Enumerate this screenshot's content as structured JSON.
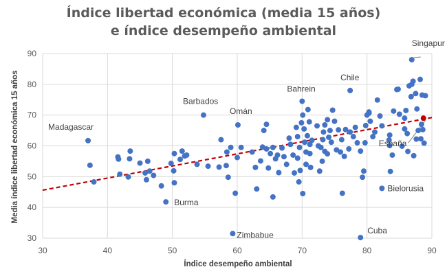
{
  "chart_data": {
    "type": "scatter",
    "title_line1": "Índice libertad económica (media 15 años)",
    "title_line2": "e índice desempeño ambiental",
    "xlabel": "Índice desempeño ambiental",
    "ylabel": "Media índice libertad económica 15 años",
    "xlim": [
      30,
      90
    ],
    "ylim": [
      30,
      90
    ],
    "xticks": [
      30,
      40,
      50,
      60,
      70,
      80,
      90
    ],
    "yticks": [
      30,
      40,
      50,
      60,
      70,
      80,
      90
    ],
    "grid": true,
    "point_color": "#4472c4",
    "trend_color": "#c00000",
    "trendline": {
      "x": [
        30,
        90
      ],
      "y": [
        45.6,
        69.2
      ]
    },
    "labeled_points": [
      {
        "label": "Singapur",
        "x": 86.9,
        "y": 88
      },
      {
        "label": "Chile",
        "x": 77.4,
        "y": 78
      },
      {
        "label": "Bahrein",
        "x": 70,
        "y": 74.5
      },
      {
        "label": "Barbados",
        "x": 54.8,
        "y": 70
      },
      {
        "label": "Omán",
        "x": 60.1,
        "y": 66.8
      },
      {
        "label": "Madagascar",
        "x": 37,
        "y": 61.7
      },
      {
        "label": "España",
        "x": 88.7,
        "y": 69
      },
      {
        "label": "Bielorusia",
        "x": 82.3,
        "y": 46.2
      },
      {
        "label": "Burma",
        "x": 49,
        "y": 41.8
      },
      {
        "label": "Zimbabue",
        "x": 59.3,
        "y": 31.5
      },
      {
        "label": "Cuba",
        "x": 79,
        "y": 30.2
      }
    ],
    "points": [
      [
        37.3,
        53.7
      ],
      [
        37.9,
        48.3
      ],
      [
        41.6,
        56.4
      ],
      [
        41.9,
        50.8
      ],
      [
        41.7,
        55.7
      ],
      [
        43.2,
        49.9
      ],
      [
        43.5,
        58.3
      ],
      [
        43.4,
        55.8
      ],
      [
        45.0,
        54.4
      ],
      [
        45.8,
        51.2
      ],
      [
        46.0,
        49.0
      ],
      [
        46.5,
        51.8
      ],
      [
        47.1,
        50.4
      ],
      [
        46.2,
        55.0
      ],
      [
        48.3,
        47.0
      ],
      [
        49.8,
        54.3
      ],
      [
        50.3,
        57.5
      ],
      [
        50.2,
        51.9
      ],
      [
        51.2,
        55.6
      ],
      [
        51.9,
        56.7
      ],
      [
        51.5,
        58.3
      ],
      [
        52.2,
        57.0
      ],
      [
        50.3,
        48.0
      ],
      [
        53.8,
        54.0
      ],
      [
        55.5,
        53.4
      ],
      [
        57.2,
        53.1
      ],
      [
        57.5,
        62.0
      ],
      [
        58.3,
        53.6
      ],
      [
        58.4,
        58.0
      ],
      [
        58.6,
        49.8
      ],
      [
        59.0,
        59.5
      ],
      [
        59.7,
        44.6
      ],
      [
        60.0,
        56.2
      ],
      [
        60.6,
        59.5
      ],
      [
        62.3,
        58.0
      ],
      [
        62.8,
        53.0
      ],
      [
        63.0,
        46.0
      ],
      [
        63.6,
        55.1
      ],
      [
        63.9,
        59.6
      ],
      [
        64.1,
        65.0
      ],
      [
        64.5,
        59.0
      ],
      [
        64.8,
        52.8
      ],
      [
        64.5,
        67.0
      ],
      [
        65.1,
        57.5
      ],
      [
        65.5,
        59.5
      ],
      [
        65.9,
        55.8
      ],
      [
        65.5,
        43.4
      ],
      [
        66.2,
        57.0
      ],
      [
        66.4,
        51.3
      ],
      [
        66.9,
        59.3
      ],
      [
        67.2,
        56.5
      ],
      [
        67.6,
        54.0
      ],
      [
        68.2,
        60.5
      ],
      [
        68.0,
        62.5
      ],
      [
        68.6,
        57.0
      ],
      [
        68.8,
        51.2
      ],
      [
        69.1,
        66.0
      ],
      [
        69.3,
        63.0
      ],
      [
        69.3,
        56.0
      ],
      [
        69.6,
        59.5
      ],
      [
        69.5,
        48.3
      ],
      [
        69.7,
        52.0
      ],
      [
        69.9,
        67.5
      ],
      [
        70.1,
        70.0
      ],
      [
        70.1,
        44.5
      ],
      [
        70.4,
        61.2
      ],
      [
        70.3,
        65.5
      ],
      [
        70.6,
        58.0
      ],
      [
        70.6,
        54.0
      ],
      [
        70.9,
        71.8
      ],
      [
        70.8,
        63.3
      ],
      [
        71.2,
        60.5
      ],
      [
        71.3,
        53.0
      ],
      [
        71.5,
        61.8
      ],
      [
        71.2,
        57.5
      ],
      [
        71.1,
        67.8
      ],
      [
        72.3,
        66.5
      ],
      [
        72.5,
        60.0
      ],
      [
        72.7,
        51.8
      ],
      [
        72.9,
        59.5
      ],
      [
        73.1,
        55.0
      ],
      [
        73.2,
        62.0
      ],
      [
        73.3,
        64.5
      ],
      [
        73.5,
        66.8
      ],
      [
        73.5,
        58.2
      ],
      [
        73.9,
        68.5
      ],
      [
        73.9,
        57.4
      ],
      [
        74.1,
        62.8
      ],
      [
        74.3,
        65.0
      ],
      [
        74.5,
        61.2
      ],
      [
        74.7,
        71.6
      ],
      [
        75.0,
        68.0
      ],
      [
        75.3,
        58.7
      ],
      [
        75.6,
        65.2
      ],
      [
        75.9,
        58.0
      ],
      [
        76.1,
        62.0
      ],
      [
        76.2,
        44.6
      ],
      [
        76.5,
        56.6
      ],
      [
        76.7,
        65.3
      ],
      [
        77.2,
        59.0
      ],
      [
        77.4,
        64.5
      ],
      [
        77.9,
        63.0
      ],
      [
        78.2,
        66.0
      ],
      [
        78.5,
        61.0
      ],
      [
        79.0,
        58.3
      ],
      [
        79.3,
        49.8
      ],
      [
        79.5,
        51.8
      ],
      [
        79.7,
        61.0
      ],
      [
        79.8,
        66.6
      ],
      [
        80.0,
        70.0
      ],
      [
        80.3,
        70.6
      ],
      [
        80.5,
        68.0
      ],
      [
        80.3,
        71.0
      ],
      [
        80.9,
        63.0
      ],
      [
        81.2,
        64.5
      ],
      [
        81.6,
        74.9
      ],
      [
        82.0,
        69.7
      ],
      [
        82.3,
        66.5
      ],
      [
        83.4,
        61.9
      ],
      [
        83.5,
        60.1
      ],
      [
        83.6,
        51.7
      ],
      [
        83.5,
        63.5
      ],
      [
        83.9,
        57.0
      ],
      [
        84.1,
        71.3
      ],
      [
        84.6,
        78.3
      ],
      [
        84.8,
        78.4
      ],
      [
        85.0,
        70.3
      ],
      [
        85.4,
        59.9
      ],
      [
        85.8,
        65.5
      ],
      [
        85.8,
        69.0
      ],
      [
        86.0,
        71.5
      ],
      [
        86.2,
        64.0
      ],
      [
        86.3,
        58.2
      ],
      [
        86.5,
        79.5
      ],
      [
        86.8,
        76.0
      ],
      [
        86.9,
        80.0
      ],
      [
        87.1,
        81.0
      ],
      [
        87.2,
        56.8
      ],
      [
        87.5,
        77.0
      ],
      [
        87.6,
        62.2
      ],
      [
        87.7,
        72.0
      ],
      [
        87.9,
        65.0
      ],
      [
        88.2,
        81.6
      ],
      [
        88.3,
        62.3
      ],
      [
        88.5,
        76.5
      ],
      [
        88.4,
        67.0
      ],
      [
        88.6,
        65.3
      ],
      [
        88.8,
        60.9
      ],
      [
        89.0,
        76.3
      ]
    ]
  }
}
